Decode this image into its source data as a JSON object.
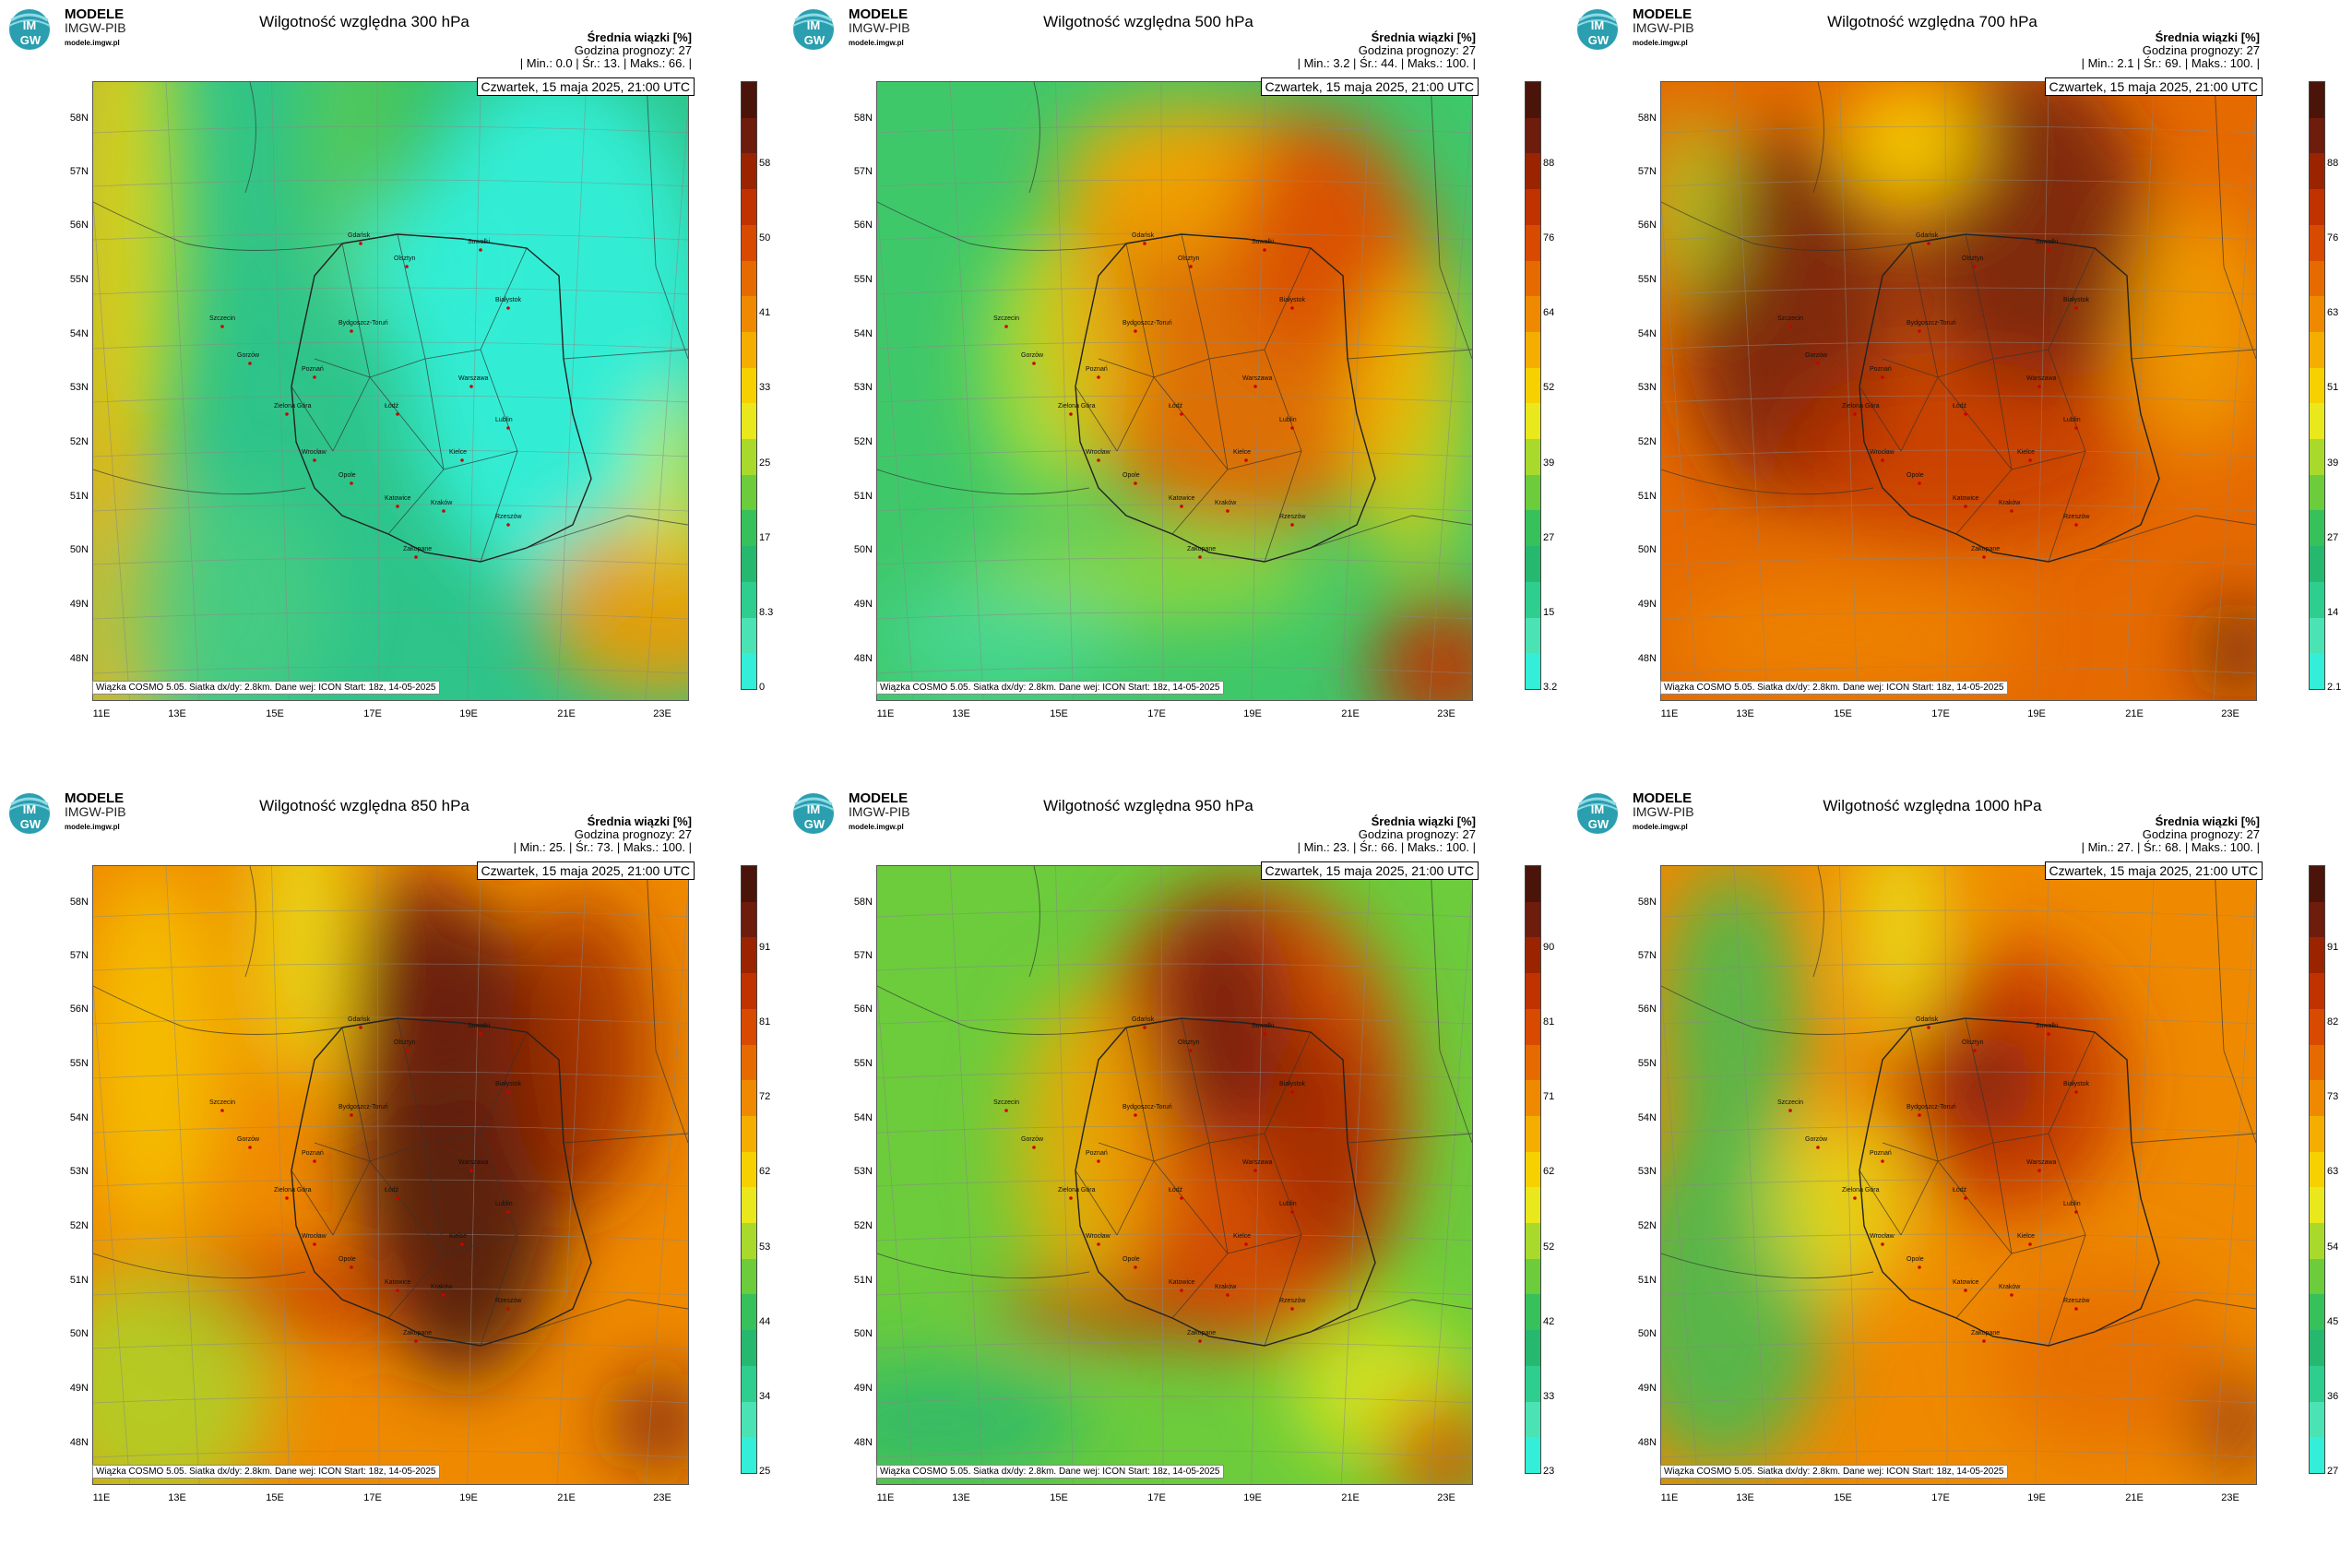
{
  "brand": {
    "name": "MODELE",
    "org": "IMGW-PIB",
    "url": "modele.imgw.pl",
    "logo_text_top": "IM",
    "logo_text_bottom": "GW"
  },
  "common": {
    "stat_label": "Średnia wiązki [%]",
    "forecast_hour": "Godzina prognozy: 27",
    "date": "Czwartek, 15 maja 2025, 21:00 UTC",
    "footer": "Wiązka COSMO 5.05. Siatka dx/dy: 2.8km. Dane wej: ICON Start: 18z, 14-05-2025",
    "lat_labels": [
      "58N",
      "57N",
      "56N",
      "55N",
      "54N",
      "53N",
      "52N",
      "51N",
      "50N",
      "49N",
      "48N"
    ],
    "lon_labels": [
      "11E",
      "13E",
      "15E",
      "17E",
      "19E",
      "21E",
      "23E"
    ],
    "cities": [
      "Gdańsk",
      "Olsztyn",
      "Suwałki",
      "Białystok",
      "Szczecin",
      "Bydgoszcz-Toruń",
      "Gorzów",
      "Poznań",
      "Warszawa",
      "Zielona Góra",
      "Łódź",
      "Lublin",
      "Wrocław",
      "Kielce",
      "Opole",
      "Katowice",
      "Kraków",
      "Rzeszów",
      "Zakopane"
    ]
  },
  "panels": [
    {
      "title": "Wilgotność względna 300 hPa",
      "stats": "| Min.: 0.0 | Śr.: 13. | Maks.: 66. |",
      "ticks": [
        "58",
        "50",
        "41",
        "33",
        "25",
        "17",
        "8.3",
        "0"
      ],
      "top_tick_gap": true,
      "mode": "p300"
    },
    {
      "title": "Wilgotność względna 500 hPa",
      "stats": "| Min.: 3.2 | Śr.: 44. | Maks.: 100. |",
      "ticks": [
        "88",
        "76",
        "64",
        "52",
        "39",
        "27",
        "15",
        "3.2"
      ],
      "mode": "p500"
    },
    {
      "title": "Wilgotność względna 700 hPa",
      "stats": "| Min.: 2.1 | Śr.: 69. | Maks.: 100. |",
      "ticks": [
        "88",
        "76",
        "63",
        "51",
        "39",
        "27",
        "14",
        "2.1"
      ],
      "mode": "p700"
    },
    {
      "title": "Wilgotność względna 850 hPa",
      "stats": "| Min.: 25. | Śr.: 73. | Maks.: 100. |",
      "ticks": [
        "91",
        "81",
        "72",
        "62",
        "53",
        "44",
        "34",
        "25"
      ],
      "mode": "p850"
    },
    {
      "title": "Wilgotność względna 950 hPa",
      "stats": "| Min.: 23. | Śr.: 66. | Maks.: 100. |",
      "ticks": [
        "90",
        "81",
        "71",
        "62",
        "52",
        "42",
        "33",
        "23"
      ],
      "mode": "p950"
    },
    {
      "title": "Wilgotność względna 1000 hPa",
      "stats": "| Min.: 27. | Śr.: 68. | Maks.: 100. |",
      "ticks": [
        "91",
        "82",
        "73",
        "63",
        "54",
        "45",
        "36",
        "27"
      ],
      "mode": "p1000"
    }
  ]
}
